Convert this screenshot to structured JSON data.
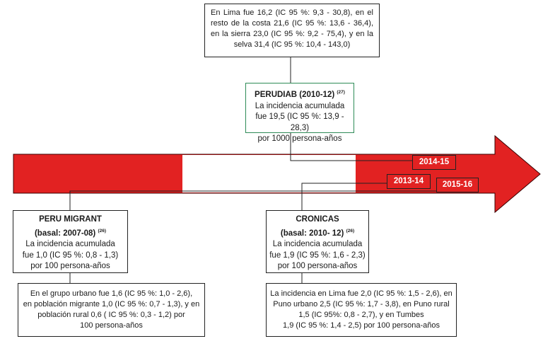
{
  "lima_box": {
    "text": "En Lima fue 16,2 (IC 95 %: 9,3 - 30,8), en el resto de la costa 21,6 (IC 95 %: 13,6 - 36,4), en la sierra 23,0 (IC 95 %: 9,2 - 75,4), y en la selva 31,4 (IC 95 %: 10,4 - 143,0)"
  },
  "perudiab": {
    "title": "PERUDIAB (2010-12)",
    "ref": "(27)",
    "line1": "La incidencia acumulada",
    "line2": "fue 19,5 (IC 95 %: 13,9 - 28,3)",
    "line3": "por 1000 persona-años"
  },
  "peru_migrant": {
    "title": "PERU MIGRANT",
    "subtitle": "(basal: 2007-08)",
    "ref": "(26)",
    "line1": "La incidencia acumulada",
    "line2": "fue 1,0 (IC 95 %: 0,8 - 1,3)",
    "line3": "por 100 persona-años"
  },
  "migrant_detail": {
    "line1": "En el grupo urbano fue 1,6 (IC 95 %: 1,0 - 2,6),",
    "line2": "en población migrante 1,0 (IC 95 %: 0,7 - 1,3), y en",
    "line3": "población rural 0,6 ( IC 95 %: 0,3 - 1,2) por",
    "line4": "100 persona-años"
  },
  "cronicas": {
    "title": "CRONICAS",
    "subtitle": "(basal: 2010- 12)",
    "ref": "(26)",
    "line1": "La incidencia acumulada",
    "line2": "fue 1,9 (IC 95 %: 1,6 - 2,3)",
    "line3": "por 100 persona-años"
  },
  "cronicas_detail": {
    "line1": "La incidencia en Lima fue 2,0 (IC 95 %: 1,5 - 2,6), en",
    "line2": "Puno urbano 2,5 (IC 95 %: 1,7 - 3,8), en Puno rural",
    "line3": "1,5 (IC 95%: 0,8 - 2,7), y en Tumbes",
    "line4": "1,9 (IC 95 %: 1,4 - 2,5) por 100 persona-años"
  },
  "timeline_tags": {
    "t2014_15": "2014-15",
    "t2013_14": "2013-14",
    "t2015_16": "2015-16"
  },
  "colors": {
    "arrow_red": "#e22222",
    "perudiab_border": "#2e8b57",
    "box_border": "#222222"
  }
}
